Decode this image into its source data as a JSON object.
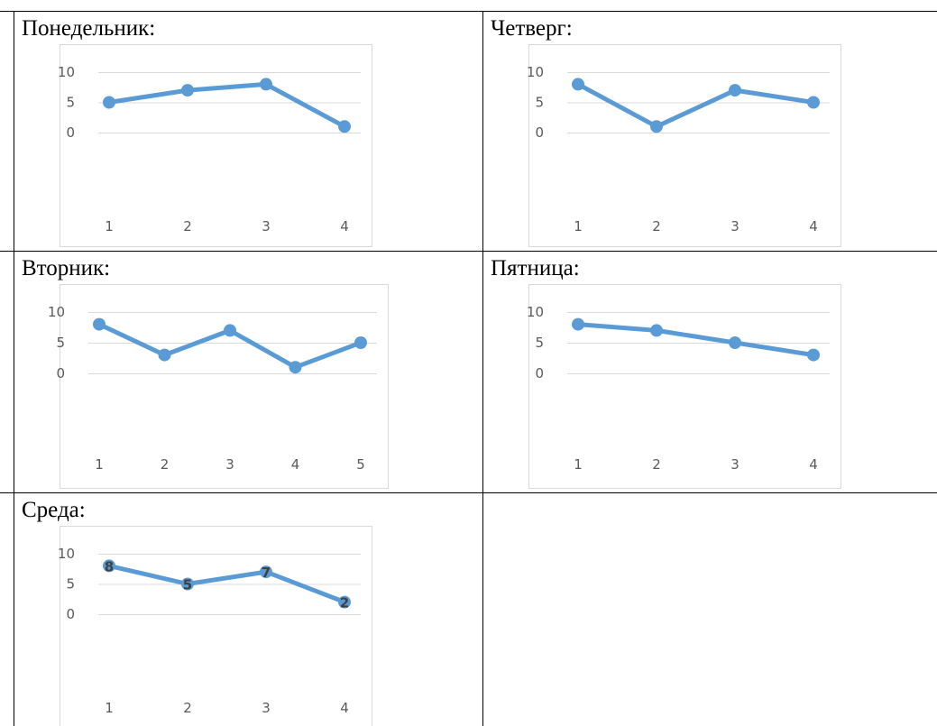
{
  "colors": {
    "series": "#5b9bd5"
  },
  "chart_data": [
    {
      "type": "line",
      "title": "Понедельник:",
      "x": [
        1,
        2,
        3,
        4
      ],
      "values": [
        5,
        7,
        8,
        1
      ],
      "ylim": [
        0,
        10
      ],
      "yticks": [
        0,
        5,
        10
      ],
      "grid": true,
      "data_labels": false
    },
    {
      "type": "line",
      "title": "Четверг:",
      "x": [
        1,
        2,
        3,
        4
      ],
      "values": [
        8,
        1,
        7,
        5
      ],
      "ylim": [
        0,
        10
      ],
      "yticks": [
        0,
        5,
        10
      ],
      "grid": true,
      "data_labels": false
    },
    {
      "type": "line",
      "title": "Вторник:",
      "x": [
        1,
        2,
        3,
        4,
        5
      ],
      "values": [
        8,
        3,
        7,
        1,
        5
      ],
      "ylim": [
        0,
        10
      ],
      "yticks": [
        0,
        5,
        10
      ],
      "grid": true,
      "data_labels": false
    },
    {
      "type": "line",
      "title": "Пятница:",
      "x": [
        1,
        2,
        3,
        4
      ],
      "values": [
        8,
        7,
        5,
        3
      ],
      "ylim": [
        0,
        10
      ],
      "yticks": [
        0,
        5,
        10
      ],
      "grid": true,
      "data_labels": false
    },
    {
      "type": "line",
      "title": "Среда:",
      "x": [
        1,
        2,
        3,
        4
      ],
      "values": [
        8,
        5,
        7,
        2
      ],
      "ylim": [
        0,
        10
      ],
      "yticks": [
        0,
        5,
        10
      ],
      "grid": true,
      "data_labels": true
    }
  ]
}
